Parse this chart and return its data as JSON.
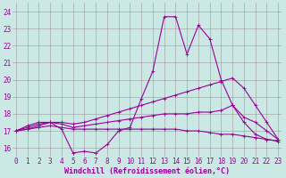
{
  "xlabel": "Windchill (Refroidissement éolien,°C)",
  "bg_color": "#cce8e4",
  "grid_color": "#999999",
  "line_color": "#990099",
  "x_ticks": [
    0,
    1,
    2,
    3,
    4,
    5,
    6,
    7,
    8,
    9,
    10,
    11,
    12,
    13,
    14,
    15,
    16,
    17,
    18,
    19,
    20,
    21,
    22,
    23
  ],
  "y_ticks": [
    16,
    17,
    18,
    19,
    20,
    21,
    22,
    23,
    24
  ],
  "xlim": [
    -0.3,
    23.3
  ],
  "ylim": [
    15.5,
    24.5
  ],
  "series": [
    {
      "x": [
        0,
        1,
        2,
        3,
        4,
        5,
        6,
        7,
        8,
        9,
        10,
        11,
        12,
        13,
        14,
        15,
        16,
        17,
        18,
        19,
        20,
        21,
        22,
        23
      ],
      "y": [
        17.0,
        17.3,
        17.5,
        17.5,
        17.1,
        15.7,
        15.8,
        15.7,
        16.2,
        17.0,
        17.2,
        18.9,
        20.5,
        23.7,
        23.7,
        21.5,
        23.2,
        22.4,
        20.0,
        18.5,
        17.5,
        16.8,
        16.5,
        16.4
      ]
    },
    {
      "x": [
        0,
        1,
        2,
        3,
        4,
        5,
        6,
        7,
        8,
        9,
        10,
        11,
        12,
        13,
        14,
        15,
        16,
        17,
        18,
        19,
        20,
        21,
        22,
        23
      ],
      "y": [
        17.0,
        17.2,
        17.4,
        17.5,
        17.5,
        17.4,
        17.5,
        17.7,
        17.9,
        18.1,
        18.3,
        18.5,
        18.7,
        18.9,
        19.1,
        19.3,
        19.5,
        19.7,
        19.9,
        20.1,
        19.5,
        18.5,
        17.5,
        16.5
      ]
    },
    {
      "x": [
        0,
        1,
        2,
        3,
        4,
        5,
        6,
        7,
        8,
        9,
        10,
        11,
        12,
        13,
        14,
        15,
        16,
        17,
        18,
        19,
        20,
        21,
        22,
        23
      ],
      "y": [
        17.0,
        17.1,
        17.3,
        17.5,
        17.4,
        17.2,
        17.3,
        17.4,
        17.5,
        17.6,
        17.7,
        17.8,
        17.9,
        18.0,
        18.0,
        18.0,
        18.1,
        18.1,
        18.2,
        18.5,
        17.8,
        17.5,
        17.0,
        16.5
      ]
    },
    {
      "x": [
        0,
        1,
        2,
        3,
        4,
        5,
        6,
        7,
        8,
        9,
        10,
        11,
        12,
        13,
        14,
        15,
        16,
        17,
        18,
        19,
        20,
        21,
        22,
        23
      ],
      "y": [
        17.0,
        17.1,
        17.2,
        17.3,
        17.2,
        17.1,
        17.1,
        17.1,
        17.1,
        17.1,
        17.1,
        17.1,
        17.1,
        17.1,
        17.1,
        17.0,
        17.0,
        16.9,
        16.8,
        16.8,
        16.7,
        16.6,
        16.5,
        16.4
      ]
    }
  ],
  "tick_fontsize": 5.5,
  "label_fontsize": 6.0,
  "marker_size": 2.0,
  "linewidth": 0.8
}
